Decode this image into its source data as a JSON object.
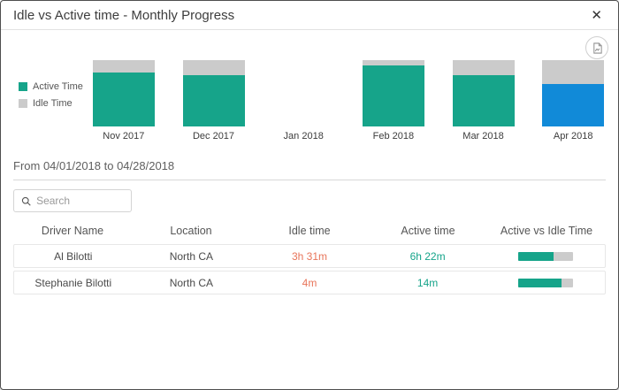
{
  "modal": {
    "title": "Idle vs Active time - Monthly Progress",
    "close_glyph": "✕"
  },
  "colors": {
    "active": "#16a48a",
    "idle": "#cbcbcb",
    "selected": "#118ad8",
    "idle_text": "#e8755a",
    "active_text": "#16a48a"
  },
  "chart_data": {
    "type": "bar",
    "subtype": "stacked-100-percent",
    "title": "Idle vs Active time - Monthly Progress",
    "categories": [
      "Nov 2017",
      "Dec 2017",
      "Jan 2018",
      "Feb 2018",
      "Mar 2018",
      "Apr 2018"
    ],
    "series": [
      {
        "name": "Active Time",
        "values_pct": [
          81,
          77,
          null,
          92,
          78,
          64
        ]
      },
      {
        "name": "Idle Time",
        "values_pct": [
          19,
          23,
          null,
          8,
          22,
          36
        ]
      }
    ],
    "selected_category": "Apr 2018",
    "legend": [
      {
        "label": "Active Time",
        "color": "#16a48a"
      },
      {
        "label": "Idle Time",
        "color": "#cbcbcb"
      }
    ],
    "legend_position": "left",
    "grid": false
  },
  "date_range": {
    "text": "From 04/01/2018 to 04/28/2018"
  },
  "search": {
    "placeholder": "Search"
  },
  "table": {
    "columns": [
      "Driver Name",
      "Location",
      "Idle time",
      "Active time",
      "Active vs Idle Time"
    ],
    "rows": [
      {
        "driver": "Al Bilotti",
        "location": "North CA",
        "idle": "3h 31m",
        "active": "6h 22m",
        "active_pct": 64
      },
      {
        "driver": "Stephanie Bilotti",
        "location": "North CA",
        "idle": "4m",
        "active": "14m",
        "active_pct": 78
      }
    ]
  },
  "icons": {
    "export": "export-chart-image",
    "search": "magnifier",
    "close": "x"
  }
}
